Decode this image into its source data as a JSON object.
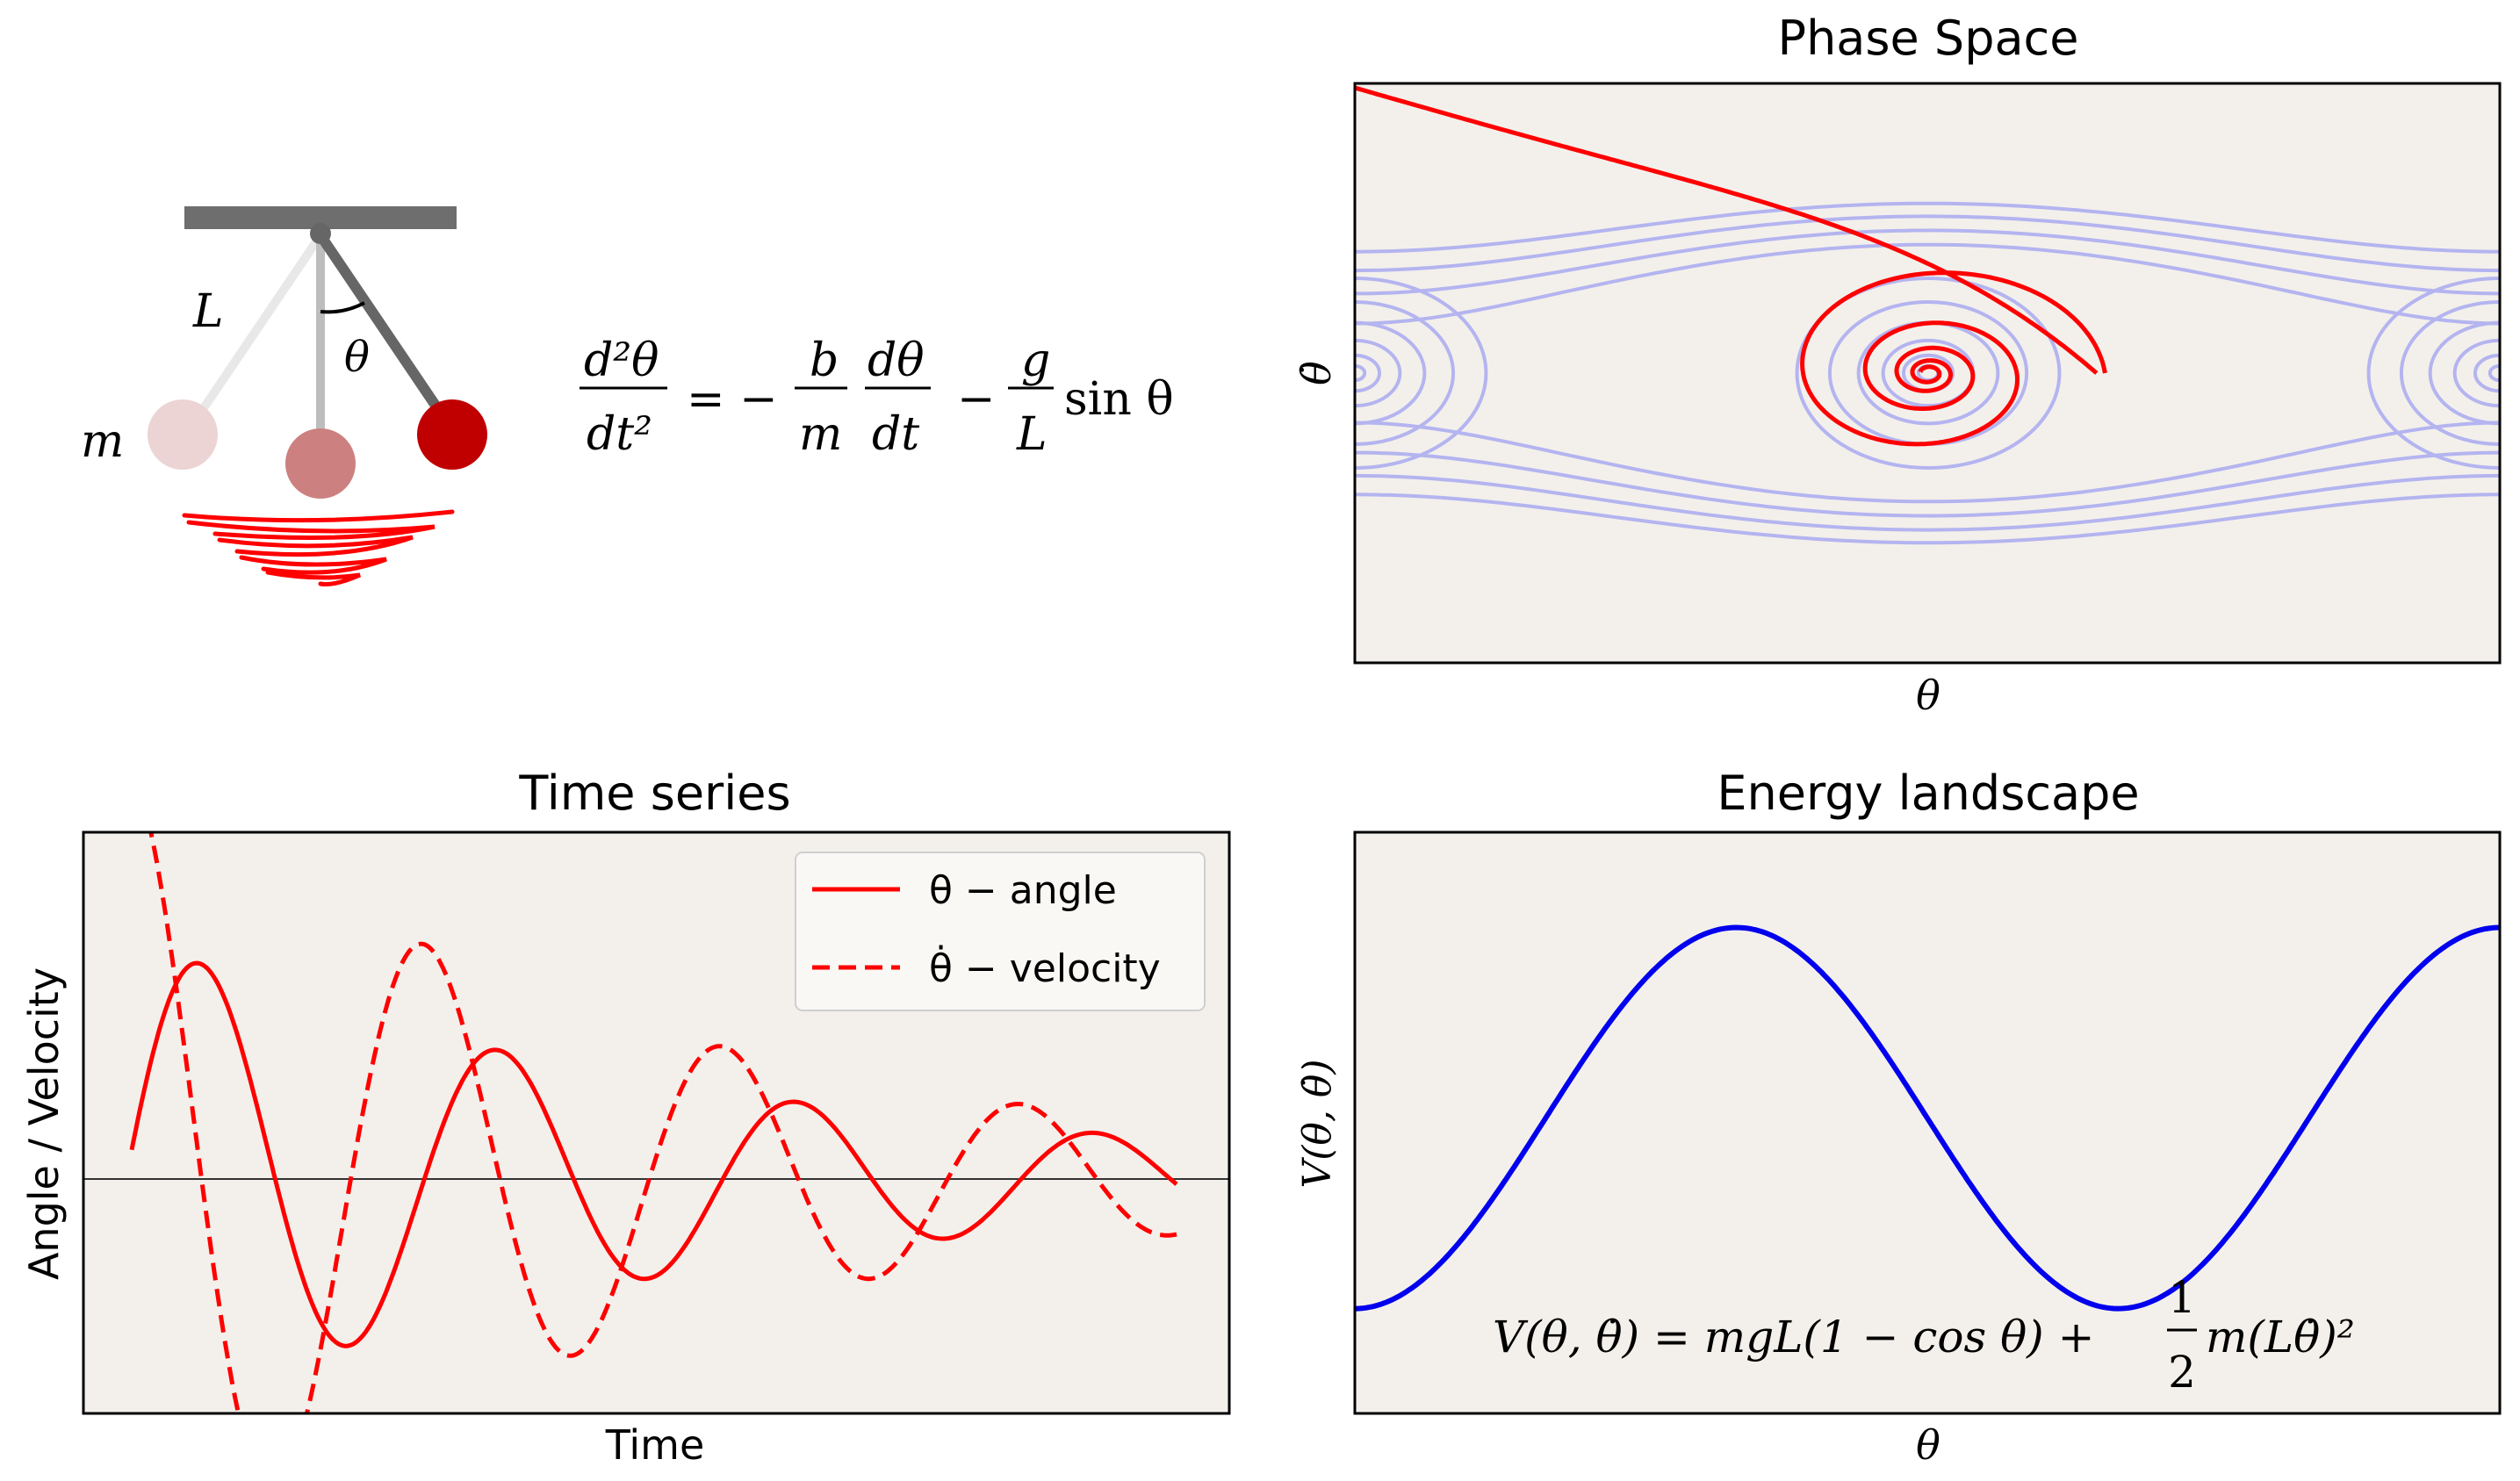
{
  "pendulum": {
    "label_length": "L",
    "label_angle": "θ",
    "label_mass": "m",
    "equation": {
      "lhs_num": "d²θ",
      "lhs_den": "dt²",
      "eq": "= −",
      "b": "b",
      "m": "m",
      "dtheta": "dθ",
      "dt": "dt",
      "minus": "−",
      "g": "g",
      "L": "L",
      "sin": "sin θ"
    }
  },
  "phase_space": {
    "title": "Phase Space",
    "xlabel": "θ",
    "ylabel": "θ̇"
  },
  "time_series": {
    "title": "Time series",
    "xlabel": "Time",
    "ylabel": "Angle / Velocity",
    "legend": [
      {
        "label": "θ − angle",
        "style": "solid"
      },
      {
        "label": "θ̇ − velocity",
        "style": "dashed"
      }
    ]
  },
  "energy": {
    "title": "Energy landscape",
    "xlabel": "θ",
    "ylabel": "V(θ, θ̇)",
    "formula_lhs": "V(θ, θ̇) = mgL(1 − cos θ) +",
    "formula_half_num": "1",
    "formula_half_den": "2",
    "formula_rhs": "m(Lθ̇)²"
  },
  "chart_data": [
    {
      "type": "line",
      "title": "Time series",
      "xlabel": "Time",
      "ylabel": "Angle / Velocity",
      "series": [
        {
          "name": "θ − angle",
          "style": "solid",
          "amplitude": 1.15,
          "decay": 0.18,
          "omega": 2.2,
          "phase": -1.45
        },
        {
          "name": "θ̇ − velocity",
          "style": "dashed",
          "amplitude": 1.95,
          "decay": 0.2,
          "omega": 2.2,
          "phase": 0.1
        }
      ],
      "x_range": [
        0,
        10
      ],
      "y_range": [
        -1.3,
        1.95
      ]
    },
    {
      "type": "line",
      "title": "Energy landscape",
      "xlabel": "θ",
      "ylabel": "V(θ, θ̇)",
      "series": [
        {
          "name": "V",
          "function": "1 - cos(θ)"
        }
      ],
      "x_range": [
        -3.1416,
        6.2832
      ],
      "y_range": [
        -0.55,
        2.5
      ]
    }
  ],
  "colors": {
    "panel_bg": "#f3f0eb",
    "red": "#ff0000",
    "blue": "#0000ee",
    "stream": "#b4b4f0"
  }
}
